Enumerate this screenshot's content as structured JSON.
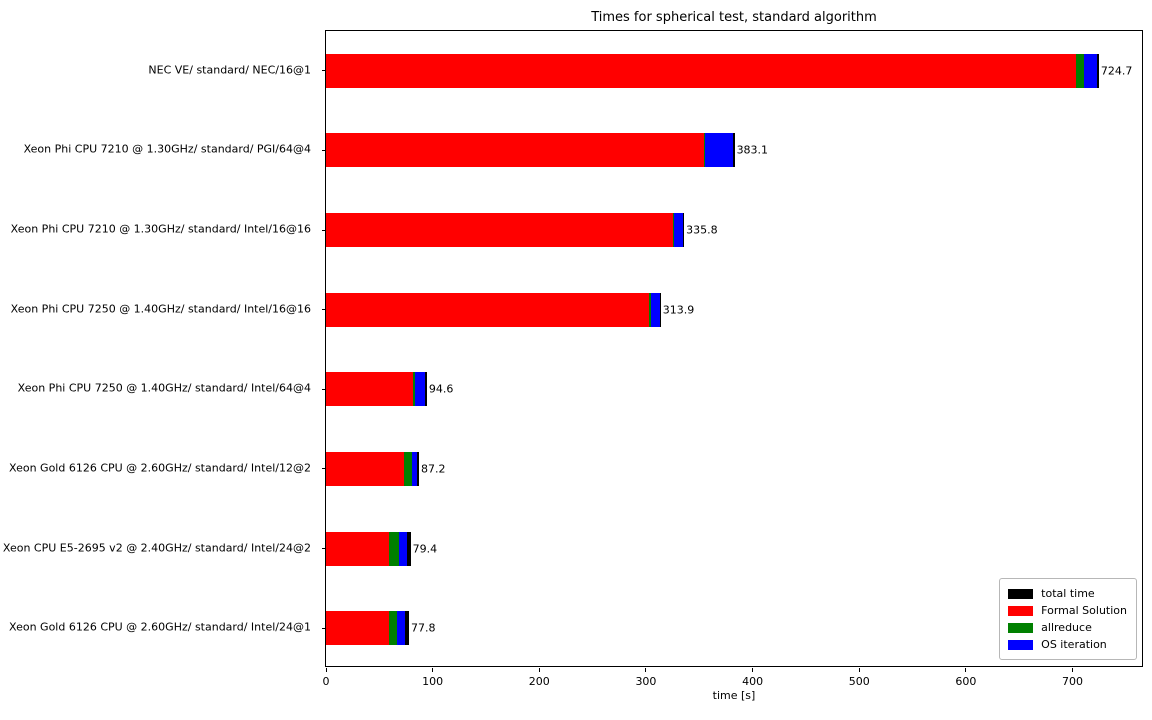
{
  "title": "Times for spherical test, standard algorithm",
  "chart_data": {
    "type": "bar",
    "orientation": "horizontal",
    "stacking": "components (Formal Solution, allreduce, OS iteration) drawn over a full-length 'total time' black bar; leftover total shows as black sliver at bar end",
    "title": "Times for spherical test, standard algorithm",
    "xlabel": "time [s]",
    "ylabel": "",
    "xlim": [
      0,
      767
    ],
    "xticks": [
      0,
      100,
      200,
      300,
      400,
      500,
      600,
      700
    ],
    "grid": false,
    "legend_position": "lower right",
    "categories": [
      "NEC VE/ standard/ NEC/16@1",
      "Xeon Phi CPU 7210 @ 1.30GHz/ standard/ PGI/64@4",
      "Xeon Phi CPU 7210 @ 1.30GHz/ standard/ Intel/16@16",
      "Xeon Phi CPU 7250 @ 1.40GHz/ standard/ Intel/16@16",
      "Xeon Phi CPU 7250 @ 1.40GHz/ standard/ Intel/64@4",
      "Xeon Gold 6126 CPU @ 2.60GHz/ standard/ Intel/12@2",
      "Xeon CPU E5-2695 v2 @ 2.40GHz/ standard/ Intel/24@2",
      "Xeon Gold 6126 CPU @ 2.60GHz/ standard/ Intel/24@1"
    ],
    "totals": [
      724.7,
      383.1,
      335.8,
      313.9,
      94.6,
      87.2,
      79.4,
      77.8
    ],
    "value_labels": [
      "724.7",
      "383.1",
      "335.8",
      "313.9",
      "94.6",
      "87.2",
      "79.4",
      "77.8"
    ],
    "series": [
      {
        "name": "total time",
        "color": "#000000",
        "values": [
          724.7,
          383.1,
          335.8,
          313.9,
          94.6,
          87.2,
          79.4,
          77.8
        ]
      },
      {
        "name": "Formal Solution",
        "color": "#ff0000",
        "values": [
          703.5,
          354.0,
          325.5,
          303.0,
          81.5,
          73.5,
          59.4,
          58.8
        ]
      },
      {
        "name": "allreduce",
        "color": "#008000",
        "values": [
          7.5,
          1.8,
          0.4,
          1.8,
          2.4,
          6.9,
          9.4,
          7.8
        ]
      },
      {
        "name": "OS iteration",
        "color": "#0000ff",
        "values": [
          12.2,
          26.0,
          9.0,
          8.4,
          8.8,
          5.0,
          7.2,
          7.8
        ]
      }
    ]
  }
}
